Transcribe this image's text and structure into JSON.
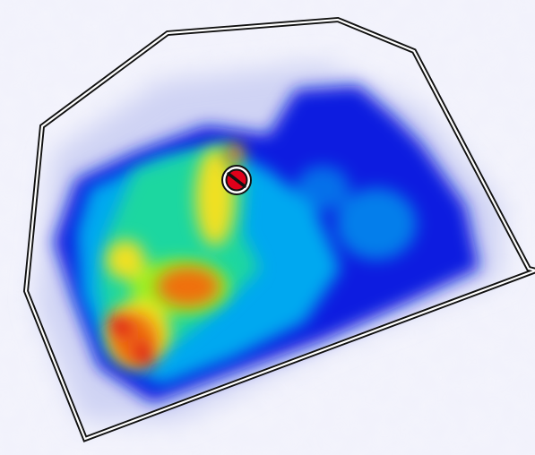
{
  "heatmap": {
    "background_color": "#f4f4fc",
    "outline_color": "#111111",
    "marker_color": "#e0001a",
    "palette": [
      "#cdd2f3",
      "#0a1fe0",
      "#00a8f0",
      "#1fd7a0",
      "#9af020",
      "#f0e020",
      "#f07010",
      "#e0001a"
    ]
  }
}
